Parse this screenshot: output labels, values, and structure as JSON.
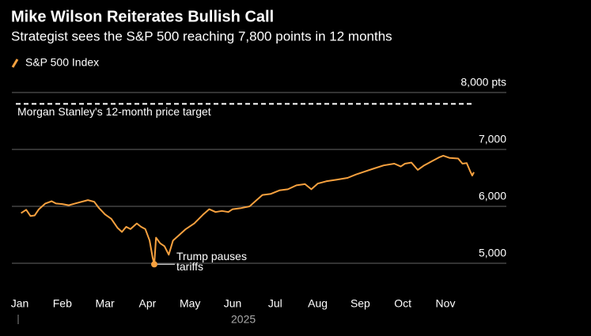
{
  "chart_data": {
    "type": "line",
    "title": "Mike Wilson Reiterates Bullish Call",
    "subtitle": "Strategist sees the S&P 500 reaching 7,800 points in 12 months",
    "xlabel": "2025",
    "xlim": [
      -0.2,
      12
    ],
    "xticks": [
      {
        "value": 0,
        "label": "Jan"
      },
      {
        "value": 1,
        "label": "Feb"
      },
      {
        "value": 2,
        "label": "Mar"
      },
      {
        "value": 3,
        "label": "Apr"
      },
      {
        "value": 4,
        "label": "May"
      },
      {
        "value": 5,
        "label": "Jun"
      },
      {
        "value": 6,
        "label": "Jul"
      },
      {
        "value": 7,
        "label": "Aug"
      },
      {
        "value": 8,
        "label": "Sep"
      },
      {
        "value": 9,
        "label": "Oct"
      },
      {
        "value": 10,
        "label": "Nov"
      }
    ],
    "ylim": [
      4750,
      8000
    ],
    "yticks": [
      {
        "value": 5000,
        "label": "5,000"
      },
      {
        "value": 6000,
        "label": "6,000"
      },
      {
        "value": 7000,
        "label": "7,000"
      },
      {
        "value": 8000,
        "label": "8,000 pts"
      }
    ],
    "grid": true,
    "series": [
      {
        "name": "S&P 500 Index",
        "color": "#f7a13f",
        "x": [
          0.03,
          0.15,
          0.25,
          0.35,
          0.45,
          0.6,
          0.75,
          0.85,
          1.0,
          1.15,
          1.35,
          1.6,
          1.75,
          1.85,
          2.0,
          2.15,
          2.3,
          2.4,
          2.5,
          2.6,
          2.75,
          2.85,
          2.95,
          3.05,
          3.12,
          3.16,
          3.2,
          3.3,
          3.4,
          3.5,
          3.6,
          3.75,
          3.9,
          4.0,
          4.1,
          4.3,
          4.45,
          4.6,
          4.75,
          4.9,
          5.0,
          5.2,
          5.4,
          5.55,
          5.7,
          5.9,
          6.1,
          6.3,
          6.5,
          6.7,
          6.85,
          7.0,
          7.2,
          7.45,
          7.7,
          7.9,
          8.1,
          8.3,
          8.55,
          8.8,
          8.95,
          9.05,
          9.2,
          9.35,
          9.5,
          9.7,
          9.85,
          9.95,
          10.1,
          10.3,
          10.4,
          10.5,
          10.58,
          10.63,
          10.67
        ],
        "values": [
          5880,
          5940,
          5830,
          5840,
          5950,
          6050,
          6090,
          6050,
          6040,
          6020,
          6060,
          6110,
          6080,
          5980,
          5860,
          5780,
          5620,
          5550,
          5640,
          5600,
          5700,
          5640,
          5600,
          5400,
          5100,
          4982,
          5450,
          5350,
          5300,
          5150,
          5400,
          5500,
          5600,
          5650,
          5700,
          5850,
          5950,
          5900,
          5920,
          5900,
          5950,
          5970,
          6000,
          6100,
          6200,
          6220,
          6280,
          6300,
          6370,
          6390,
          6300,
          6400,
          6440,
          6470,
          6500,
          6560,
          6610,
          6660,
          6720,
          6750,
          6700,
          6750,
          6770,
          6640,
          6720,
          6800,
          6860,
          6890,
          6850,
          6840,
          6750,
          6760,
          6620,
          6540,
          6600
        ]
      }
    ],
    "target": {
      "value": 7800,
      "label": "Morgan Stanley's 12-month price target"
    },
    "annotation": {
      "lines": [
        "Trump pauses",
        "tariffs"
      ],
      "x": 3.16,
      "y": 4982
    }
  }
}
